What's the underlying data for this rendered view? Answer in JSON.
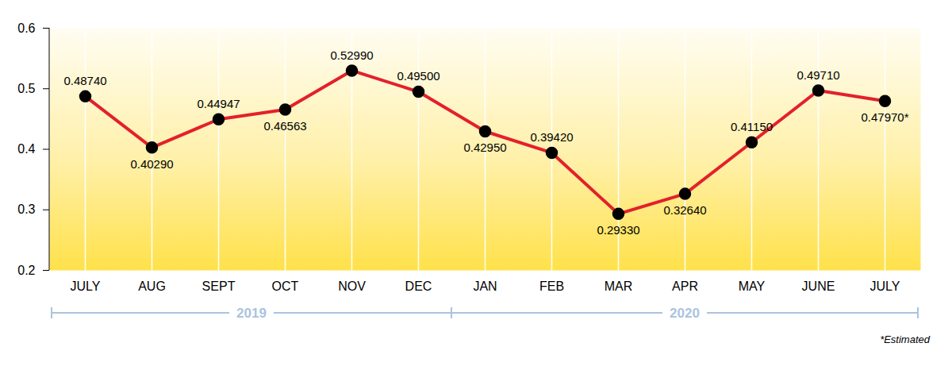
{
  "chart_data": {
    "type": "line",
    "categories": [
      "JULY",
      "AUG",
      "SEPT",
      "OCT",
      "NOV",
      "DEC",
      "JAN",
      "FEB",
      "MAR",
      "APR",
      "MAY",
      "JUNE",
      "JULY"
    ],
    "values": [
      0.4874,
      0.4029,
      0.44947,
      0.46563,
      0.5299,
      0.495,
      0.4295,
      0.3942,
      0.2933,
      0.3264,
      0.4115,
      0.4971,
      0.4797
    ],
    "value_labels": [
      "0.48740",
      "0.40290",
      "0.44947",
      "0.46563",
      "0.52990",
      "0.49500",
      "0.42950",
      "0.39420",
      "0.29330",
      "0.32640",
      "0.41150",
      "0.49710",
      "0.47970*"
    ],
    "color": "#e3202b",
    "marker": "circle",
    "ylim": [
      0.2,
      0.6
    ],
    "yticks": [
      0.2,
      0.3,
      0.4,
      0.5,
      0.6
    ],
    "grid": true,
    "data_labels": true,
    "groups": [
      {
        "label": "2019",
        "first": 0,
        "last": 5
      },
      {
        "label": "2020",
        "first": 6,
        "last": 12
      }
    ],
    "footnote": "*Estimated"
  }
}
